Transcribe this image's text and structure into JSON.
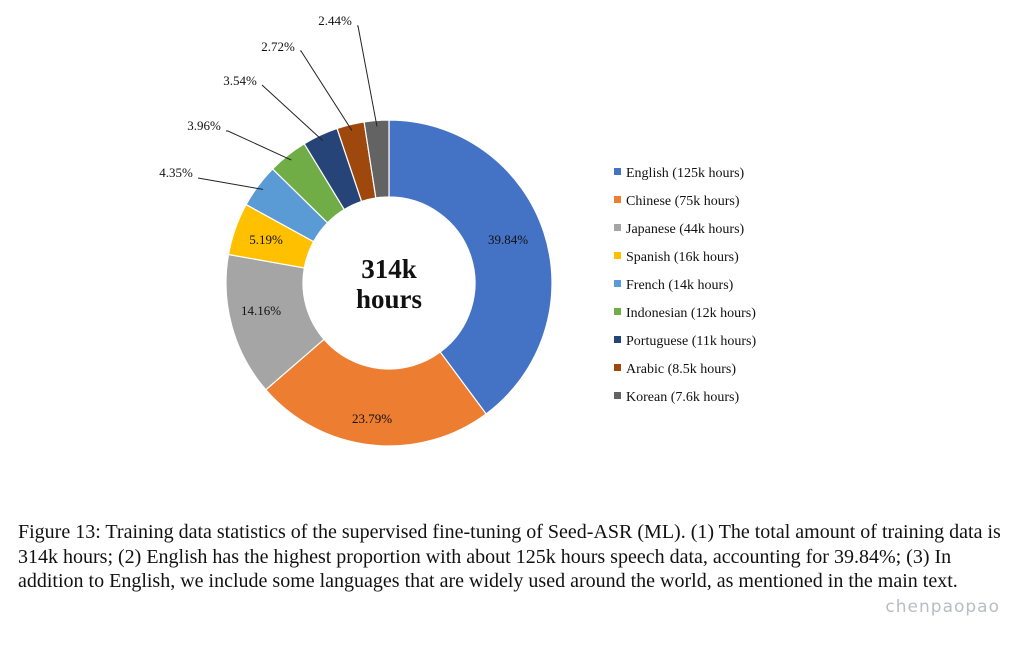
{
  "chart_data": {
    "type": "pie",
    "style": "donut",
    "center_label": [
      "314k",
      "hours"
    ],
    "slices": [
      {
        "label": "English (125k hours)",
        "value": 39.84,
        "pct_label": "39.84%",
        "color": "#4472c4"
      },
      {
        "label": "Chinese (75k hours)",
        "value": 23.79,
        "pct_label": "23.79%",
        "color": "#ed7d31"
      },
      {
        "label": "Japanese (44k hours)",
        "value": 14.16,
        "pct_label": "14.16%",
        "color": "#a5a5a5"
      },
      {
        "label": "Spanish (16k hours)",
        "value": 5.19,
        "pct_label": "5.19%",
        "color": "#ffc000"
      },
      {
        "label": "French (14k hours)",
        "value": 4.35,
        "pct_label": "4.35%",
        "color": "#5b9bd5"
      },
      {
        "label": "Indonesian (12k hours)",
        "value": 3.96,
        "pct_label": "3.96%",
        "color": "#70ad47"
      },
      {
        "label": "Portuguese (11k hours)",
        "value": 3.54,
        "pct_label": "3.54%",
        "color": "#264478"
      },
      {
        "label": "Arabic (8.5k hours)",
        "value": 2.72,
        "pct_label": "2.72%",
        "color": "#9e480e"
      },
      {
        "label": "Korean (7.6k hours)",
        "value": 2.44,
        "pct_label": "2.44%",
        "color": "#636363"
      }
    ],
    "legend_position": "right"
  },
  "caption": "Figure 13: Training data statistics of the supervised fine-tuning of Seed-ASR (ML). (1) The total amount of training data is 314k hours; (2) English has the highest proportion with about 125k hours speech data, accounting for 39.84%; (3) In addition to English, we include some languages that are widely used around the world, as mentioned in the main text.",
  "watermark": "chenpaopao"
}
